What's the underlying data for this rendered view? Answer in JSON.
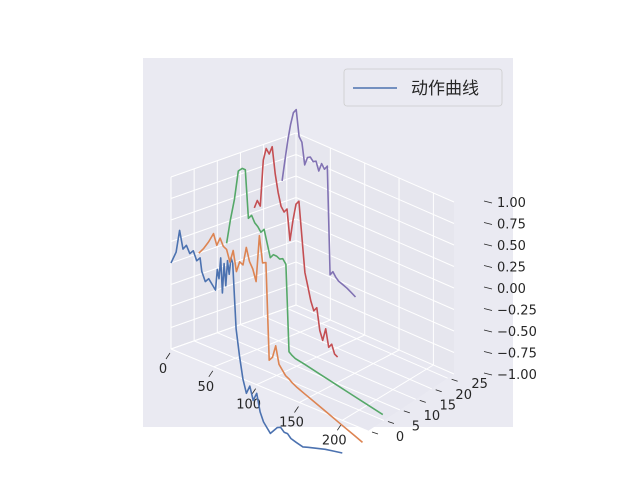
{
  "chart_data": {
    "type": "line",
    "projection": "3d",
    "legend": {
      "label": "动作曲线",
      "placement": "top-right"
    },
    "x_ticks": [
      0,
      50,
      100,
      150,
      200
    ],
    "y_ticks": [
      0,
      5,
      10,
      15,
      20,
      25
    ],
    "z_ticks": [
      "−1.00",
      "−0.75",
      "−0.50",
      "−0.25",
      "0.00",
      "0.25",
      "0.50",
      "0.75",
      "1.00"
    ],
    "xlim": [
      0,
      230
    ],
    "ylim": [
      0,
      27
    ],
    "zlim": [
      -1,
      1
    ],
    "grid": true,
    "colors": [
      "#4c72b0",
      "#dd8452",
      "#55a868",
      "#c44e52",
      "#8172b3"
    ],
    "series": [
      {
        "y": 0,
        "color": "#4c72b0",
        "x": [
          0,
          6,
          10,
          14,
          18,
          22,
          26,
          30,
          34,
          36,
          40,
          44,
          48,
          52,
          54,
          56,
          58,
          60,
          62,
          64,
          66,
          68,
          70,
          72,
          76,
          80,
          84,
          88,
          92,
          96,
          100,
          104,
          108,
          112,
          116,
          120,
          124,
          128,
          132,
          136,
          140,
          146,
          154,
          160,
          170,
          180,
          190,
          200
        ],
        "z": [
          0.0,
          0.15,
          0.42,
          0.22,
          0.28,
          0.2,
          0.25,
          0.15,
          0.2,
          0.05,
          -0.05,
          0.0,
          -0.05,
          -0.1,
          0.15,
          0.05,
          0.3,
          -0.1,
          0.25,
          0.0,
          0.3,
          0.15,
          0.35,
          0.3,
          -0.45,
          -0.75,
          -1.0,
          -1.15,
          -1.05,
          -1.2,
          -1.1,
          -1.3,
          -1.4,
          -1.45,
          -1.5,
          -1.45,
          -1.4,
          -1.38,
          -1.42,
          -1.42,
          -1.46,
          -1.48,
          -1.5,
          -1.48,
          -1.45,
          -1.42,
          -1.4,
          -1.38
        ]
      },
      {
        "y": 6,
        "color": "#dd8452",
        "x": [
          0,
          6,
          12,
          18,
          22,
          26,
          30,
          34,
          38,
          42,
          46,
          50,
          54,
          58,
          62,
          66,
          70,
          74,
          78,
          82,
          86,
          90,
          94,
          98,
          102,
          106,
          110,
          114,
          120,
          130,
          140,
          150,
          160,
          170,
          180,
          190,
          200
        ],
        "z": [
          0.0,
          0.08,
          0.18,
          0.3,
          0.18,
          0.28,
          0.2,
          0.18,
          0.05,
          0.2,
          -0.03,
          0.1,
          0.08,
          0.3,
          0.15,
          0.08,
          -0.05,
          0.5,
          0.2,
          0.22,
          -0.9,
          -0.85,
          -0.7,
          -0.9,
          -0.95,
          -1.0,
          -1.02,
          -1.05,
          -1.08,
          -1.12,
          -1.16,
          -1.2,
          -1.24,
          -1.28,
          -1.32,
          -1.36,
          -1.4
        ]
      },
      {
        "y": 12,
        "color": "#55a868",
        "x": [
          0,
          5,
          10,
          15,
          20,
          24,
          28,
          32,
          36,
          40,
          44,
          48,
          52,
          56,
          60,
          64,
          68,
          72,
          76,
          80,
          84,
          88,
          100,
          120,
          140,
          160,
          180,
          200
        ],
        "z": [
          0.0,
          0.3,
          0.55,
          0.9,
          0.95,
          0.95,
          0.4,
          0.45,
          0.38,
          0.35,
          0.3,
          0.35,
          0.2,
          0.05,
          0.1,
          0.1,
          0.08,
          0.1,
          0.05,
          -0.95,
          -0.98,
          -1.0,
          -1.02,
          -1.06,
          -1.1,
          -1.14,
          -1.18,
          -1.22
        ]
      },
      {
        "y": 18,
        "color": "#c44e52",
        "x": [
          0,
          4,
          8,
          12,
          16,
          20,
          24,
          28,
          32,
          36,
          40,
          44,
          48,
          52,
          56,
          60,
          64,
          68,
          72,
          76,
          80,
          84,
          88,
          92,
          96,
          100,
          104,
          108,
          112
        ],
        "z": [
          0.3,
          0.4,
          0.35,
          0.9,
          1.05,
          1.0,
          1.1,
          0.8,
          0.6,
          0.45,
          0.4,
          0.45,
          0.1,
          0.35,
          0.55,
          0.6,
          0.2,
          -0.2,
          -0.35,
          -0.5,
          -0.6,
          -0.55,
          -0.8,
          -0.9,
          -0.75,
          -0.95,
          -0.9,
          -1.0,
          -1.02
        ]
      },
      {
        "y": 24,
        "color": "#8172b3",
        "x": [
          0,
          4,
          8,
          12,
          16,
          20,
          24,
          28,
          32,
          36,
          40,
          44,
          48,
          52,
          56,
          60,
          64,
          68,
          72,
          76,
          80,
          86,
          92,
          98,
          104
        ],
        "z": [
          0.5,
          0.75,
          1.0,
          1.2,
          1.35,
          1.4,
          1.1,
          1.05,
          0.8,
          0.9,
          0.92,
          0.88,
          0.9,
          0.8,
          0.9,
          0.85,
          0.9,
          -0.35,
          -0.3,
          -0.35,
          -0.38,
          -0.4,
          -0.42,
          -0.45,
          -0.48
        ]
      }
    ]
  }
}
